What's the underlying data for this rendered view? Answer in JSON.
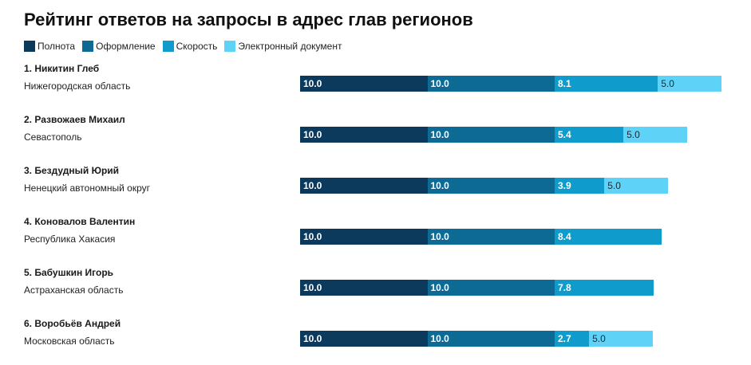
{
  "title": "Рейтинг ответов на запросы в адрес глав регионов",
  "legend": [
    {
      "label": "Полнота",
      "color": "#0b3a5c"
    },
    {
      "label": "Оформление",
      "color": "#0c6a94"
    },
    {
      "label": "Скорость",
      "color": "#0f9ccc"
    },
    {
      "label": "Электронный документ",
      "color": "#5fd3f7"
    }
  ],
  "chart_data": {
    "type": "bar",
    "orientation": "horizontal",
    "stacked": true,
    "title": "Рейтинг ответов на запросы в адрес глав регионов",
    "legend_position": "top-left",
    "grid": false,
    "categories": [
      {
        "name": "1. Никитин Глеб",
        "region": "Нижегородская область"
      },
      {
        "name": "2. Развожаев Михаил",
        "region": "Севастополь"
      },
      {
        "name": "3. Бездудный Юрий",
        "region": "Ненецкий автономный округ"
      },
      {
        "name": "4. Коновалов Валентин",
        "region": "Республика Хакасия"
      },
      {
        "name": "5. Бабушкин Игорь",
        "region": "Астраханская область"
      },
      {
        "name": "6. Воробьёв Андрей",
        "region": "Московская область"
      }
    ],
    "series": [
      {
        "name": "Полнота",
        "color": "#0b3a5c",
        "label_color": "#ffffff",
        "labels": [
          "10.0",
          "10.0",
          "10.0",
          "10.0",
          "10.0",
          "10.0"
        ],
        "values": [
          10.0,
          10.0,
          10.0,
          10.0,
          10.0,
          10.0
        ]
      },
      {
        "name": "Оформление",
        "color": "#0c6a94",
        "label_color": "#ffffff",
        "labels": [
          "10.0",
          "10.0",
          "10.0",
          "10.0",
          "10.0",
          "10.0"
        ],
        "values": [
          10.0,
          10.0,
          10.0,
          10.0,
          10.0,
          10.0
        ]
      },
      {
        "name": "Скорость",
        "color": "#0f9ccc",
        "label_color": "#ffffff",
        "labels": [
          "8.1",
          "5.4",
          "3.9",
          "8.4",
          "7.8",
          "2.7"
        ],
        "values": [
          8.1,
          5.4,
          3.9,
          8.4,
          7.8,
          2.7
        ]
      },
      {
        "name": "Электронный документ",
        "color": "#5fd3f7",
        "label_color": "#1a2a33",
        "labels": [
          "5.0",
          "5.0",
          "5.0",
          null,
          null,
          "5.0"
        ],
        "values": [
          5.0,
          5.0,
          5.0,
          0,
          0,
          5.0
        ]
      }
    ]
  }
}
